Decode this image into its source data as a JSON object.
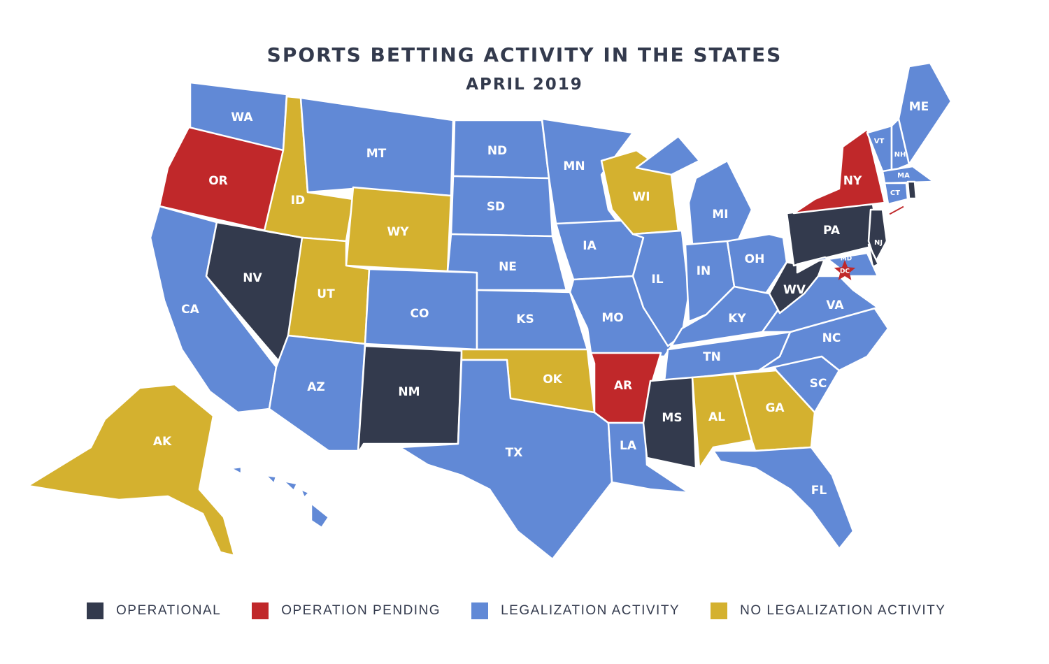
{
  "title": "SPORTS BETTING ACTIVITY IN THE STATES",
  "subtitle": "APRIL 2019",
  "colors": {
    "operational": "#333a4d",
    "pending": "#c0282a",
    "legalization": "#6189d6",
    "none": "#d4b12f"
  },
  "legend": [
    {
      "key": "operational",
      "label": "OPERATIONAL"
    },
    {
      "key": "pending",
      "label": "OPERATION PENDING"
    },
    {
      "key": "legalization",
      "label": "LEGALIZATION ACTIVITY"
    },
    {
      "key": "none",
      "label": "NO LEGALIZATION ACTIVITY"
    }
  ],
  "states": [
    {
      "code": "WA",
      "status": "legalization"
    },
    {
      "code": "OR",
      "status": "pending"
    },
    {
      "code": "CA",
      "status": "legalization"
    },
    {
      "code": "NV",
      "status": "operational"
    },
    {
      "code": "ID",
      "status": "none"
    },
    {
      "code": "MT",
      "status": "legalization"
    },
    {
      "code": "WY",
      "status": "none"
    },
    {
      "code": "UT",
      "status": "none"
    },
    {
      "code": "CO",
      "status": "legalization"
    },
    {
      "code": "AZ",
      "status": "legalization"
    },
    {
      "code": "NM",
      "status": "operational"
    },
    {
      "code": "ND",
      "status": "legalization"
    },
    {
      "code": "SD",
      "status": "legalization"
    },
    {
      "code": "NE",
      "status": "legalization"
    },
    {
      "code": "KS",
      "status": "legalization"
    },
    {
      "code": "OK",
      "status": "none"
    },
    {
      "code": "TX",
      "status": "legalization"
    },
    {
      "code": "MN",
      "status": "legalization"
    },
    {
      "code": "IA",
      "status": "legalization"
    },
    {
      "code": "MO",
      "status": "legalization"
    },
    {
      "code": "AR",
      "status": "pending"
    },
    {
      "code": "LA",
      "status": "legalization"
    },
    {
      "code": "WI",
      "status": "none"
    },
    {
      "code": "IL",
      "status": "legalization"
    },
    {
      "code": "MI",
      "status": "legalization"
    },
    {
      "code": "IN",
      "status": "legalization"
    },
    {
      "code": "OH",
      "status": "legalization"
    },
    {
      "code": "KY",
      "status": "legalization"
    },
    {
      "code": "TN",
      "status": "legalization"
    },
    {
      "code": "MS",
      "status": "operational"
    },
    {
      "code": "AL",
      "status": "none"
    },
    {
      "code": "GA",
      "status": "none"
    },
    {
      "code": "FL",
      "status": "legalization"
    },
    {
      "code": "SC",
      "status": "legalization"
    },
    {
      "code": "NC",
      "status": "legalization"
    },
    {
      "code": "VA",
      "status": "legalization"
    },
    {
      "code": "WV",
      "status": "operational"
    },
    {
      "code": "PA",
      "status": "operational"
    },
    {
      "code": "NY",
      "status": "pending"
    },
    {
      "code": "NJ",
      "status": "operational"
    },
    {
      "code": "DE",
      "status": "operational"
    },
    {
      "code": "MD",
      "status": "legalization"
    },
    {
      "code": "VT",
      "status": "legalization"
    },
    {
      "code": "NH",
      "status": "legalization"
    },
    {
      "code": "ME",
      "status": "legalization"
    },
    {
      "code": "MA",
      "status": "legalization"
    },
    {
      "code": "CT",
      "status": "legalization"
    },
    {
      "code": "RI",
      "status": "operational"
    },
    {
      "code": "AK",
      "status": "none"
    },
    {
      "code": "HI",
      "status": "legalization"
    },
    {
      "code": "DC",
      "status": "pending"
    }
  ]
}
